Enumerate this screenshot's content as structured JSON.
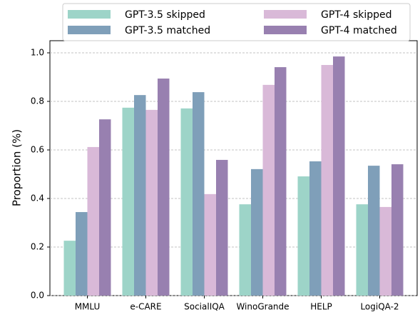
{
  "chart_data": {
    "type": "bar",
    "y_label": "Proportion (%)",
    "categories": [
      "MMLU",
      "e-CARE",
      "SocialIQA",
      "WinoGrande",
      "HELP",
      "LogiQA-2"
    ],
    "series": [
      {
        "name": "GPT-3.5 skipped",
        "color": "#9dd4c8",
        "values": [
          0.226,
          0.774,
          0.771,
          0.376,
          0.491,
          0.376
        ]
      },
      {
        "name": "GPT-3.5 matched",
        "color": "#7f9fb9",
        "values": [
          0.344,
          0.826,
          0.838,
          0.521,
          0.553,
          0.535
        ]
      },
      {
        "name": "GPT-4 skipped",
        "color": "#d9b9d8",
        "values": [
          0.612,
          0.765,
          0.418,
          0.868,
          0.95,
          0.365
        ]
      },
      {
        "name": "GPT-4 matched",
        "color": "#9880b0",
        "values": [
          0.726,
          0.894,
          0.559,
          0.941,
          0.985,
          0.541
        ]
      }
    ],
    "ylim": [
      0,
      1.05
    ],
    "yticks": [
      {
        "value": 0,
        "label": "0.0"
      },
      0.2,
      0.4,
      0.6,
      0.8,
      {
        "value": 1,
        "label": "1.0"
      }
    ],
    "grid": true,
    "legend": "top"
  }
}
